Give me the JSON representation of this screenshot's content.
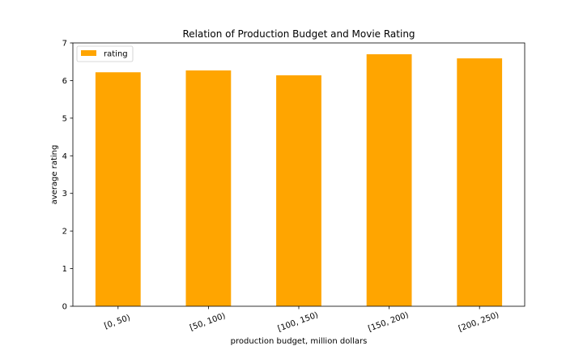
{
  "chart_data": {
    "type": "bar",
    "title": "Relation of Production Budget and Movie Rating",
    "xlabel": "production budget, million dollars",
    "ylabel": "average rating",
    "categories": [
      "[0, 50)",
      "[50, 100)",
      "[100, 150)",
      "[150, 200)",
      "[200, 250)"
    ],
    "series": [
      {
        "name": "rating",
        "values": [
          6.22,
          6.27,
          6.14,
          6.7,
          6.59
        ],
        "color": "#ffa500"
      }
    ],
    "ylim": [
      0,
      7
    ],
    "yticks": [
      0,
      1,
      2,
      3,
      4,
      5,
      6,
      7
    ],
    "grid": false,
    "legend": "top-left",
    "xtick_rotation": -20
  }
}
